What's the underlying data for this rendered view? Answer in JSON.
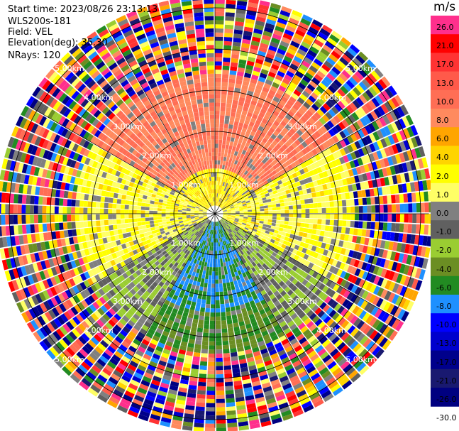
{
  "header": {
    "start_time": "Start time: 2023/08/26 23:13:13",
    "instrument": "WLS200s-181",
    "field": "Field: VEL",
    "elevation": "Elevation(deg): 35.30",
    "nrays": "NRays: 120"
  },
  "colorbar": {
    "unit": "m/s",
    "ticks": [
      "26.0",
      "21.0",
      "17.0",
      "13.0",
      "10.0",
      "8.0",
      "6.0",
      "4.0",
      "2.0",
      "1.0",
      "0.0",
      "-1.0",
      "-2.0",
      "-4.0",
      "-6.0",
      "-8.0",
      "-10.0",
      "-13.0",
      "-17.0",
      "-21.0",
      "-26.0",
      "-30.0"
    ],
    "colors": [
      "#ff2f8c",
      "#ff0000",
      "#ff3333",
      "#ff5a4a",
      "#ff6e55",
      "#ff8a5e",
      "#ffa500",
      "#ffd400",
      "#ffff00",
      "#ffff66",
      "#808080",
      "#606060",
      "#9acd32",
      "#6b8e23",
      "#228b22",
      "#1e90ff",
      "#0000ff",
      "#0000cd",
      "#00008b",
      "#191970",
      "#000080"
    ]
  },
  "chart_data": {
    "type": "heatmap",
    "projection": "polar-ppi",
    "range_ring_labels": [
      "1.00km",
      "2.00km",
      "3.00km",
      "4.00km",
      "5.00km"
    ],
    "range_rings_km": [
      1,
      2,
      3,
      4,
      5
    ],
    "max_range_km": 5.2,
    "n_rays": 120,
    "sectors": [
      {
        "azimuth_from": 300,
        "azimuth_to": 60,
        "range_km": [
          1,
          3.4
        ],
        "velocity_ms": 8.0
      },
      {
        "azimuth_from": 300,
        "azimuth_to": 60,
        "range_km": [
          0.2,
          1
        ],
        "velocity_ms": 2.0
      },
      {
        "azimuth_from": 60,
        "azimuth_to": 120,
        "range_km": [
          0.2,
          3.4
        ],
        "velocity_ms": 1.0
      },
      {
        "azimuth_from": 240,
        "azimuth_to": 300,
        "range_km": [
          0.2,
          3.4
        ],
        "velocity_ms": 1.0
      },
      {
        "azimuth_from": 120,
        "azimuth_to": 150,
        "range_km": [
          0.2,
          3.4
        ],
        "velocity_ms": -2.0
      },
      {
        "azimuth_from": 210,
        "azimuth_to": 240,
        "range_km": [
          0.2,
          3.4
        ],
        "velocity_ms": -2.0
      },
      {
        "azimuth_from": 150,
        "azimuth_to": 210,
        "range_km": [
          0.2,
          2.4
        ],
        "velocity_ms": -8.0
      },
      {
        "azimuth_from": 150,
        "azimuth_to": 210,
        "range_km": [
          2.4,
          3.4
        ],
        "velocity_ms": -6.0
      },
      {
        "azimuth_from": 0,
        "azimuth_to": 360,
        "range_km": [
          3.4,
          5.2
        ],
        "velocity_ms": "noise"
      }
    ]
  }
}
